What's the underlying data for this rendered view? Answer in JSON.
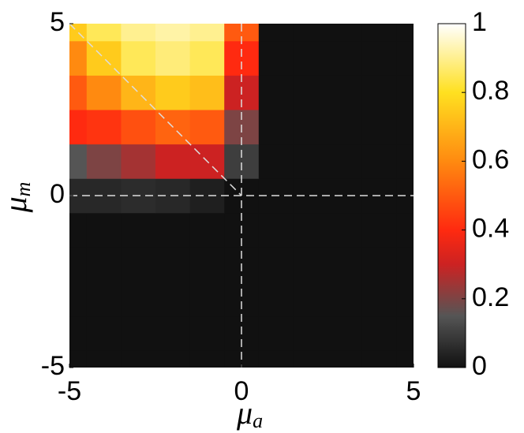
{
  "chart_data": {
    "type": "heatmap",
    "xlabel": [
      "μ",
      "a"
    ],
    "ylabel": [
      "μ",
      "m"
    ],
    "x": [
      -5,
      -4,
      -3,
      -2,
      -1,
      0,
      1,
      2,
      3,
      4,
      5
    ],
    "y": [
      -5,
      -4,
      -3,
      -2,
      -1,
      0,
      1,
      2,
      3,
      4,
      5
    ],
    "z": [
      [
        0,
        0,
        0,
        0,
        0,
        0,
        0,
        0,
        0,
        0,
        0
      ],
      [
        0,
        0,
        0,
        0,
        0,
        0,
        0,
        0,
        0,
        0,
        0
      ],
      [
        0,
        0,
        0,
        0,
        0,
        0,
        0,
        0,
        0,
        0,
        0
      ],
      [
        0,
        0,
        0,
        0,
        0,
        0,
        0,
        0,
        0,
        0,
        0
      ],
      [
        0,
        0,
        0,
        0,
        0,
        0,
        0,
        0,
        0,
        0,
        0
      ],
      [
        0.05,
        0.05,
        0.06,
        0.05,
        0.03,
        0,
        0,
        0,
        0,
        0,
        0
      ],
      [
        0.15,
        0.2,
        0.25,
        0.3,
        0.3,
        0.1,
        0,
        0,
        0,
        0,
        0
      ],
      [
        0.4,
        0.42,
        0.48,
        0.52,
        0.5,
        0.2,
        0,
        0,
        0,
        0,
        0
      ],
      [
        0.5,
        0.6,
        0.7,
        0.75,
        0.72,
        0.3,
        0,
        0,
        0,
        0,
        0
      ],
      [
        0.6,
        0.75,
        0.85,
        0.88,
        0.85,
        0.4,
        0,
        0,
        0,
        0,
        0
      ],
      [
        0.75,
        0.85,
        0.9,
        0.92,
        0.9,
        0.5,
        0,
        0,
        0,
        0,
        0
      ]
    ],
    "xlim": [
      -5,
      5
    ],
    "ylim": [
      -5,
      5
    ],
    "xticks": [
      -5,
      0,
      5
    ],
    "yticks": [
      -5,
      0,
      5
    ],
    "clim": [
      0,
      1
    ],
    "cticks": [
      0,
      0.2,
      0.4,
      0.6,
      0.8,
      1
    ],
    "colormap": [
      [
        0,
        "#111111"
      ],
      [
        0.15,
        "#555555"
      ],
      [
        0.3,
        "#cc2222"
      ],
      [
        0.4,
        "#ff2a10"
      ],
      [
        0.6,
        "#ff8a10"
      ],
      [
        0.8,
        "#ffe020"
      ],
      [
        1,
        "#ffffff"
      ]
    ],
    "reference_line_color": "#dddddd"
  }
}
